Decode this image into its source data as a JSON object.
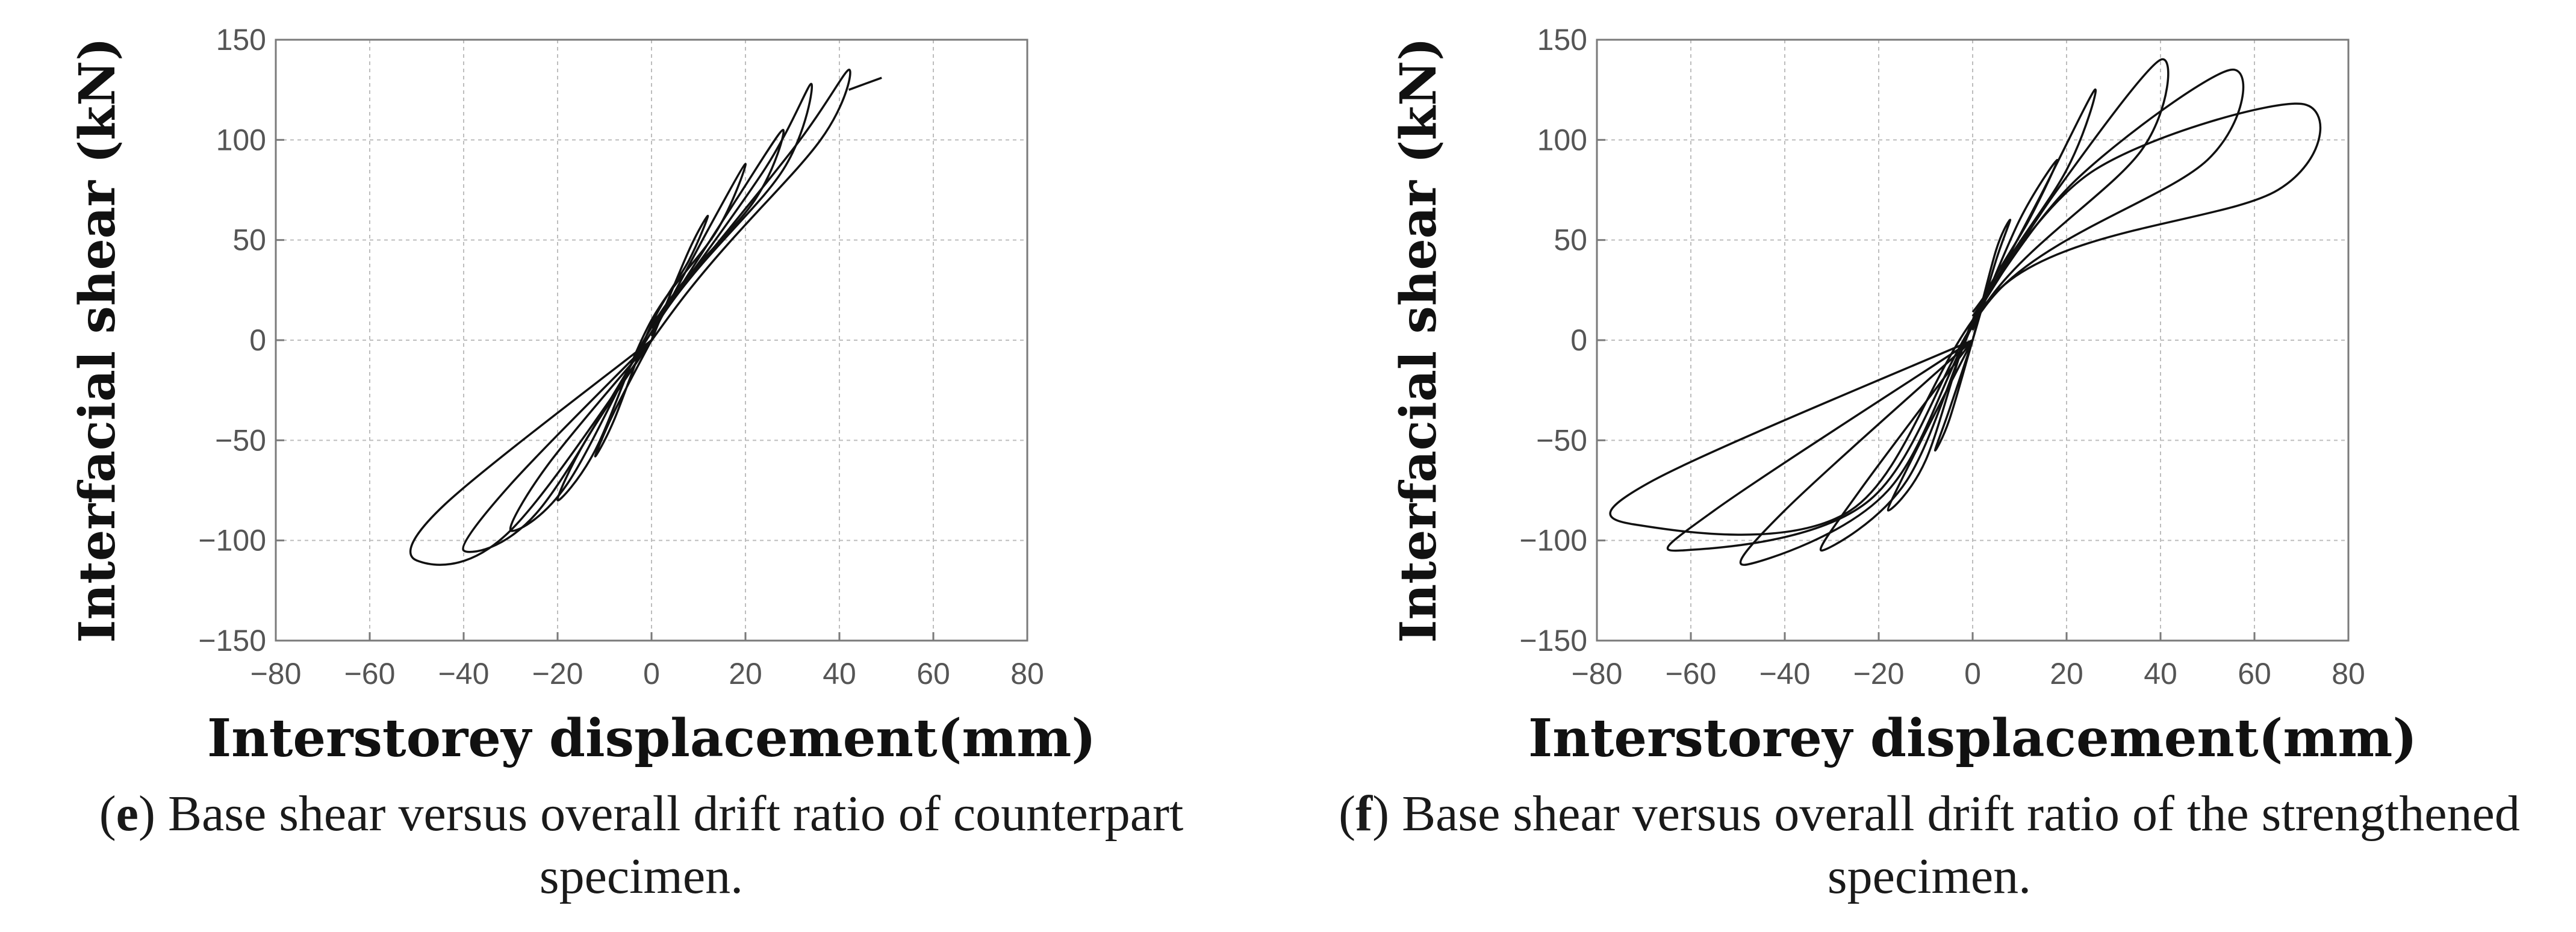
{
  "panels": [
    {
      "id": "e",
      "caption_letter": "e",
      "caption_text": " Base shear versus overall drift ratio of counterpart specimen.",
      "chart_data": {
        "type": "line",
        "title": "",
        "xlabel": "Interstorey displacement(mm)",
        "ylabel": "Interfacial shear (kN)",
        "xlim": [
          -80,
          80
        ],
        "ylim": [
          -150,
          150
        ],
        "xticks": [
          -80,
          -60,
          -40,
          -20,
          0,
          20,
          40,
          60,
          80
        ],
        "yticks": [
          -150,
          -100,
          -50,
          0,
          50,
          100,
          150
        ],
        "xtick_labels": [
          "−80",
          "−60",
          "−40",
          "−20",
          "0",
          "20",
          "40",
          "60",
          "80"
        ],
        "ytick_labels": [
          "−150",
          "−100",
          "−50",
          "0",
          "50",
          "100",
          "150"
        ],
        "grid": true,
        "description": "hysteresis loops",
        "series": [
          {
            "x": [
              0,
              8,
              12,
              8,
              0,
              -8,
              -12,
              -8,
              0
            ],
            "y": [
              0,
              45,
              62,
              40,
              8,
              -40,
              -58,
              -36,
              0
            ]
          },
          {
            "x": [
              0,
              12,
              20,
              14,
              0,
              -12,
              -20,
              -14,
              0
            ],
            "y": [
              2,
              55,
              88,
              55,
              10,
              -55,
              -80,
              -50,
              0
            ]
          },
          {
            "x": [
              0,
              18,
              28,
              22,
              2,
              -18,
              -30,
              -22,
              0
            ],
            "y": [
              4,
              70,
              105,
              70,
              14,
              -72,
              -95,
              -62,
              0
            ]
          },
          {
            "x": [
              0,
              24,
              34,
              28,
              4,
              -24,
              -40,
              -30,
              0
            ],
            "y": [
              6,
              85,
              128,
              85,
              18,
              -85,
              -105,
              -72,
              0
            ]
          },
          {
            "x": [
              0,
              30,
              42,
              36,
              8,
              -30,
              -50,
              -44,
              0
            ],
            "y": [
              8,
              95,
              135,
              100,
              25,
              -95,
              -110,
              -82,
              0
            ]
          },
          {
            "x": [
              42,
              49
            ],
            "y": [
              125,
              131
            ]
          }
        ]
      }
    },
    {
      "id": "f",
      "caption_letter": "f",
      "caption_text": " Base shear versus overall drift ratio of the strengthened specimen.",
      "chart_data": {
        "type": "line",
        "title": "",
        "xlabel": "Interstorey displacement(mm)",
        "ylabel": "Interfacial shear (kN)",
        "xlim": [
          -80,
          80
        ],
        "ylim": [
          -150,
          150
        ],
        "xticks": [
          -80,
          -60,
          -40,
          -20,
          0,
          20,
          40,
          60,
          80
        ],
        "yticks": [
          -150,
          -100,
          -50,
          0,
          50,
          100,
          150
        ],
        "xtick_labels": [
          "−80",
          "−60",
          "−40",
          "−20",
          "0",
          "20",
          "40",
          "60",
          "80"
        ],
        "ytick_labels": [
          "−150",
          "−100",
          "−50",
          "0",
          "50",
          "100",
          "150"
        ],
        "grid": true,
        "description": "hysteresis loops",
        "series": [
          {
            "x": [
              0,
              5,
              8,
              5,
              0,
              -5,
              -8,
              -5,
              0
            ],
            "y": [
              0,
              45,
              60,
              40,
              0,
              -40,
              -55,
              -35,
              0
            ]
          },
          {
            "x": [
              0,
              10,
              18,
              12,
              0,
              -10,
              -18,
              -12,
              0
            ],
            "y": [
              5,
              60,
              90,
              60,
              10,
              -60,
              -85,
              -55,
              0
            ]
          },
          {
            "x": [
              0,
              14,
              26,
              20,
              2,
              -14,
              -32,
              -24,
              0
            ],
            "y": [
              8,
              70,
              125,
              85,
              18,
              -70,
              -105,
              -75,
              0
            ]
          },
          {
            "x": [
              0,
              18,
              40,
              36,
              4,
              -18,
              -48,
              -40,
              0
            ],
            "y": [
              10,
              75,
              140,
              95,
              22,
              -75,
              -112,
              -85,
              0
            ]
          },
          {
            "x": [
              0,
              22,
              55,
              50,
              6,
              -22,
              -62,
              -55,
              0
            ],
            "y": [
              12,
              80,
              135,
              90,
              26,
              -80,
              -105,
              -85,
              0
            ]
          },
          {
            "x": [
              0,
              26,
              70,
              65,
              8,
              -26,
              -72,
              -68,
              0
            ],
            "y": [
              14,
              85,
              118,
              75,
              30,
              -85,
              -92,
              -70,
              0
            ]
          }
        ]
      }
    }
  ]
}
